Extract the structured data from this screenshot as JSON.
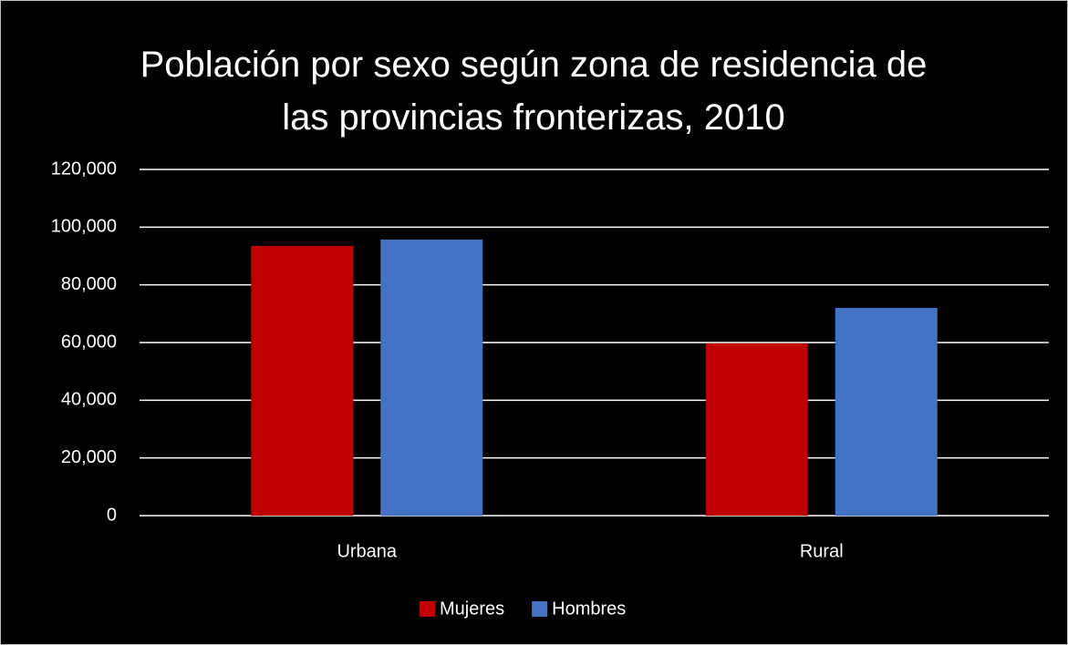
{
  "chart_data": {
    "type": "bar",
    "title": "Población por sexo según zona de residencia de las provincias fronterizas, 2010",
    "categories": [
      "Urbana",
      "Rural"
    ],
    "series": [
      {
        "name": "Mujeres",
        "color": "#c00000",
        "values": [
          93500,
          59700
        ]
      },
      {
        "name": "Hombres",
        "color": "#4472c4",
        "values": [
          95700,
          72000
        ]
      }
    ],
    "ylim": [
      0,
      120000
    ],
    "yticks": [
      0,
      {
        "value": 20000,
        "label": "20,000"
      },
      {
        "value": 40000,
        "label": "40,000"
      },
      {
        "value": 60000,
        "label": "60,000"
      },
      {
        "value": 80000,
        "label": "80,000"
      },
      {
        "value": 100000,
        "label": "100,000"
      },
      {
        "value": 120000,
        "label": "120,000"
      }
    ],
    "grid": true,
    "legend": "bottom"
  }
}
